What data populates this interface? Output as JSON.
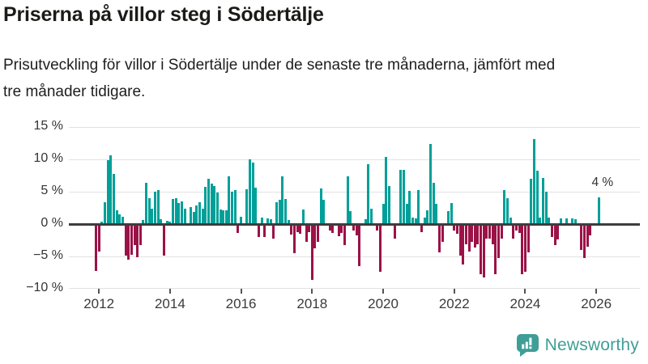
{
  "header": {
    "title": "Priserna på villor steg i Södertälje",
    "subtitle": "Prisutveckling för villor i Södertälje under de senaste tre månaderna, jämfört med tre månader tidigare."
  },
  "chart_data": {
    "type": "bar",
    "unit": "%",
    "frequency": "monthly",
    "start_month": "2011-12",
    "end_month": "2026-02",
    "values": [
      -7.0,
      -4.0,
      0.3,
      3.2,
      9.7,
      10.5,
      7.6,
      2.0,
      1.4,
      1.0,
      -4.7,
      -5.3,
      -4.6,
      -3.0,
      -4.9,
      -3.0,
      0.5,
      6.2,
      3.9,
      2.2,
      4.9,
      5.1,
      0.6,
      -4.7,
      0.4,
      0.3,
      3.7,
      3.9,
      3.1,
      3.4,
      2.2,
      0.0,
      2.5,
      1.8,
      2.8,
      3.2,
      2.3,
      5.6,
      6.9,
      6.1,
      5.7,
      4.8,
      2.1,
      2.0,
      2.0,
      7.3,
      4.9,
      5.1,
      -1.2,
      1.0,
      0.0,
      5.3,
      9.9,
      9.4,
      5.5,
      -1.8,
      0.9,
      -1.8,
      0.8,
      0.6,
      -2.1,
      3.2,
      3.6,
      7.3,
      3.8,
      0.5,
      -1.4,
      -4.3,
      -1.0,
      -1.3,
      2.1,
      -2.5,
      -1.0,
      -8.4,
      -3.5,
      -2.5,
      5.4,
      3.6,
      0.0,
      -0.8,
      -1.2,
      0.0,
      -1.7,
      -1.2,
      -3.1,
      7.3,
      1.9,
      -0.8,
      -1.6,
      -6.3,
      0.0,
      0.6,
      9.1,
      2.3,
      0.0,
      -0.8,
      -7.2,
      3.0,
      10.2,
      5.7,
      0.0,
      -2.1,
      0.0,
      8.2,
      8.3,
      3.0,
      5.0,
      0.9,
      0.8,
      5.1,
      -1.0,
      0.9,
      2.0,
      12.3,
      6.2,
      3.0,
      -4.2,
      -2.5,
      0.0,
      1.9,
      3.1,
      -0.8,
      -1.3,
      -4.7,
      -6.0,
      -2.9,
      -4.0,
      -2.5,
      -3.4,
      -2.9,
      -7.5,
      -8.1,
      -2.1,
      -2.1,
      -2.9,
      -7.5,
      -5.1,
      -2.1,
      5.1,
      3.9,
      0.9,
      -2.0,
      -0.8,
      -1.2,
      -7.5,
      -7.2,
      -4.2,
      6.9,
      13.0,
      8.1,
      0.9,
      7.0,
      4.9,
      0.9,
      -1.8,
      -3.0,
      -2.2,
      0.8,
      0.0,
      0.8,
      0.0,
      0.8,
      0.6,
      0.0,
      -3.8,
      -5.1,
      -3.3,
      -1.5,
      0.0,
      0.0,
      4.0
    ],
    "ylim": [
      -10,
      15
    ],
    "y_ticks": [
      15,
      10,
      5,
      0,
      -5,
      -10
    ],
    "y_tick_labels": [
      "15 %",
      "10 %",
      "5 %",
      "0 %",
      "−5 %",
      "−10 %"
    ],
    "x_tick_labels": [
      "2012",
      "2014",
      "2016",
      "2018",
      "2020",
      "2022",
      "2024",
      "2026"
    ],
    "x_tick_first_index": 1,
    "x_tick_step_months": 24,
    "annotation": {
      "text": "4 %",
      "value": 4.0,
      "month": "2026-02"
    },
    "grid": true,
    "legend": false,
    "colors": {
      "positive": "#00a099",
      "negative": "#9b1247",
      "grid": "#e2e2e2",
      "zero_line": "#3d3d3d",
      "axis_text": "#3a3a3a"
    }
  },
  "footer": {
    "brand": "Newsworthy",
    "brand_color": "#3f9e97",
    "icon": "newsworthy-speech-bubble-barchart-logo"
  }
}
